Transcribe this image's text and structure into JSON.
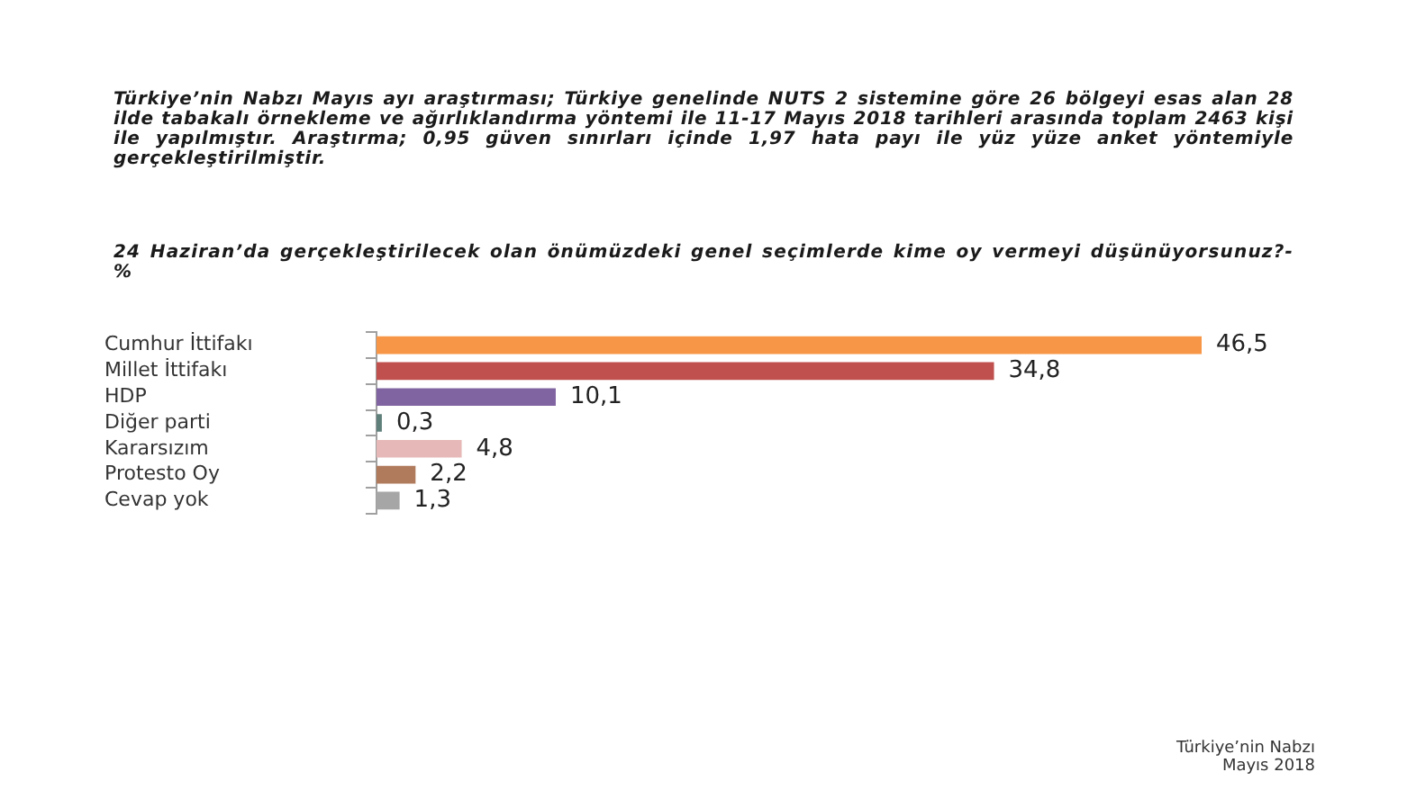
{
  "chart_data": {
    "type": "bar",
    "orientation": "horizontal",
    "title": "24 Haziran’da gerçekleştirilecek olan önümüzdeki genel seçimlerde kime oy vermeyi düşünüyorsunuz?- %",
    "annotations": [
      "Türkiye’nin Nabzı Mayıs ayı araştırması; Türkiye genelinde NUTS 2 sistemine göre 26 bölgeyi esas alan 28 ilde tabakalı örnekleme ve ağırlıklandırma yöntemi ile 11-17 Mayıs 2018 tarihleri arasında toplam 2463 kişi ile yapılmıştır. Araştırma; 0,95 güven sınırları içinde 1,97 hata payı ile yüz yüze anket yöntemiyle gerçekleştirilmiştir.",
      "Türkiye’nin Nabzı",
      "Mayıs 2018"
    ],
    "categories": [
      "Cumhur İttifakı",
      "Millet İttifakı",
      "HDP",
      "Diğer parti",
      "Kararsızım",
      "Protesto Oy",
      "Cevap yok"
    ],
    "values": [
      46.5,
      34.8,
      10.1,
      0.3,
      4.8,
      2.2,
      1.3
    ],
    "colors": [
      "#f79646",
      "#c0504d",
      "#8064a2",
      "#5f7f7a",
      "#e6b9b8",
      "#b07a5c",
      "#a6a6a6"
    ],
    "value_labels": [
      "46,5",
      "34,8",
      "10,1",
      "0,3",
      "4,8",
      "2,2",
      "1,3"
    ]
  }
}
